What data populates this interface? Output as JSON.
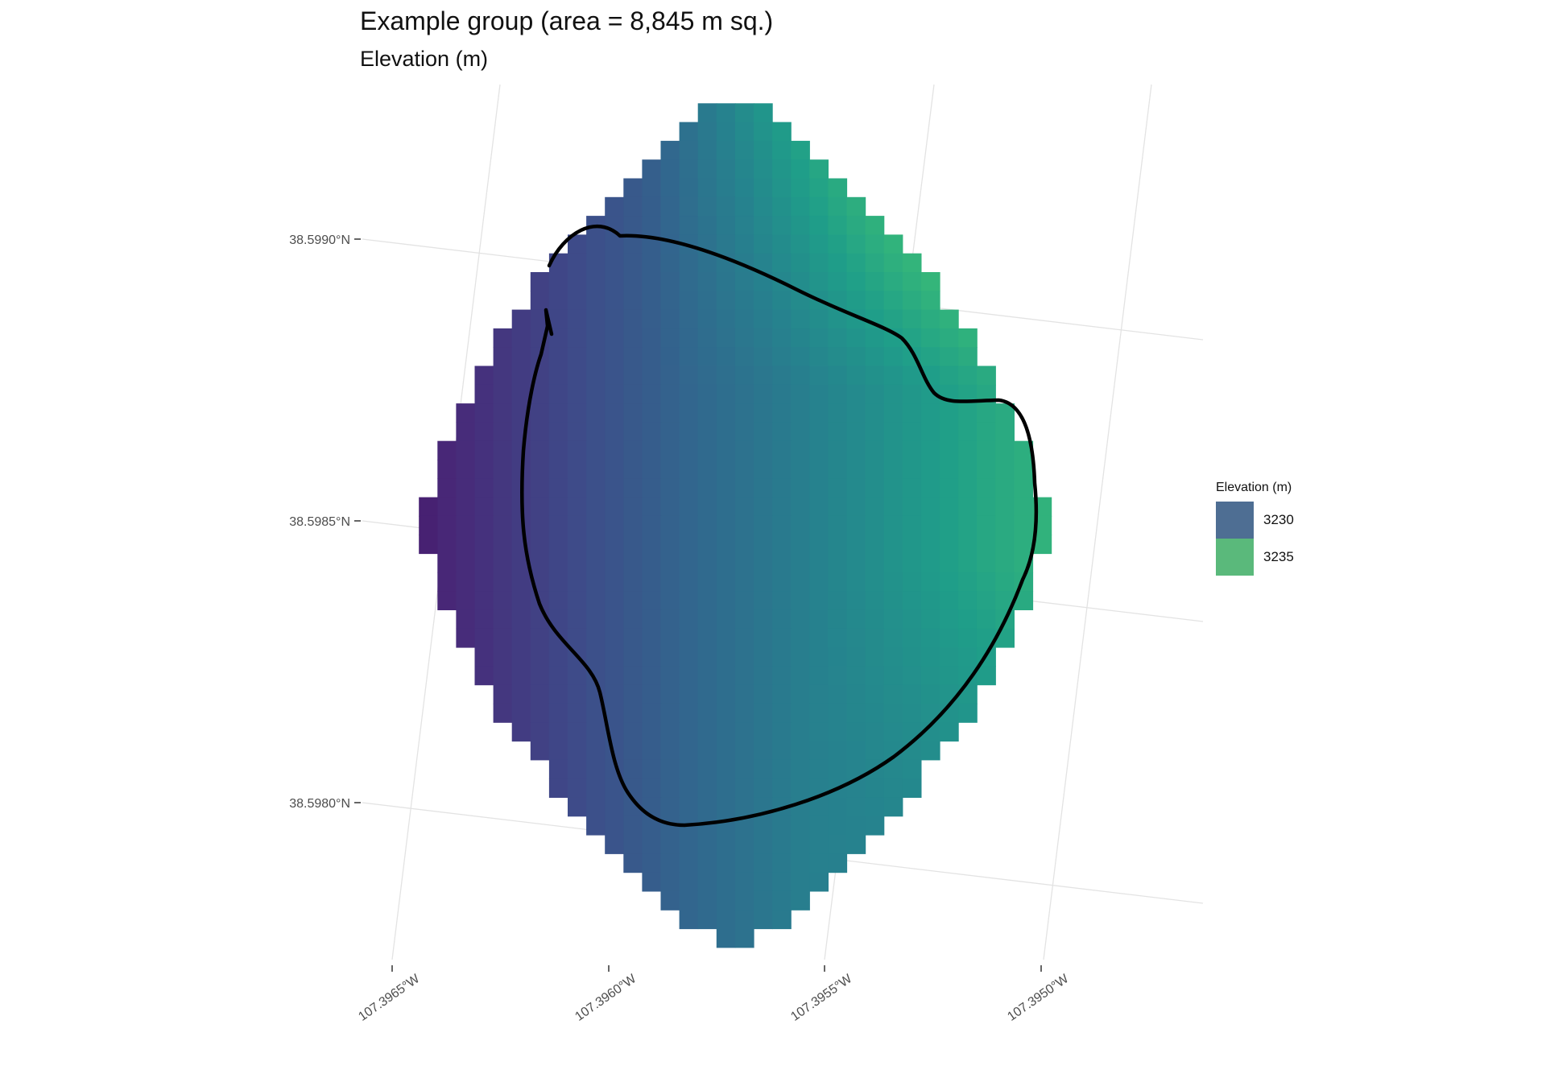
{
  "title": "Example group (area = 8,845 m sq.)",
  "subtitle": "Elevation (m)",
  "legend": {
    "title": "Elevation (m)",
    "items": [
      {
        "label": "3230",
        "color": "#4e6e93"
      },
      {
        "label": "3235",
        "color": "#5ab97b"
      }
    ]
  },
  "axes": {
    "y_labels": [
      "38.5990°N",
      "38.5985°N",
      "38.5980°N"
    ],
    "x_labels": [
      "107.3965°W",
      "107.3960°W",
      "107.3955°W",
      "107.3950°W"
    ]
  },
  "colors": {
    "viridis": [
      "#440154",
      "#482878",
      "#3e4a89",
      "#31688e",
      "#26828e",
      "#1f9e89",
      "#35b779",
      "#6ece58",
      "#b5de2b",
      "#fde725"
    ],
    "outline": "#000000",
    "graticule": "#e3e3e3"
  },
  "chart_data": {
    "type": "heatmap",
    "variable": "Elevation (m)",
    "legend_breaks": [
      3230,
      3235
    ],
    "area_m2": 8845,
    "latitude_ticks": [
      38.599,
      38.5985,
      38.598
    ],
    "longitude_ticks": [
      -107.3965,
      -107.396,
      -107.3955,
      -107.395
    ]
  }
}
